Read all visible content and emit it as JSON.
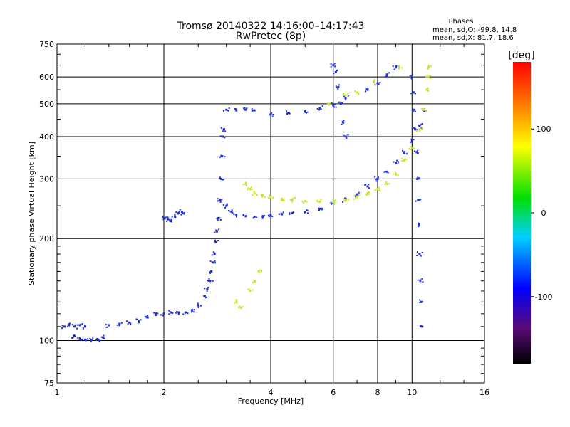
{
  "chart_data": {
    "type": "scatter",
    "title": "Tromsø 20140322 14:16:00–14:17:43",
    "subtitle": "RwPretec (8p)",
    "xlabel": "Frequency [MHz]",
    "ylabel": "Stationary phase Virtual Height [km]",
    "x_scale": "log",
    "y_scale": "log",
    "xlim": [
      1,
      16
    ],
    "ylim": [
      75,
      750
    ],
    "x_ticks": [
      1,
      2,
      4,
      6,
      8,
      10,
      16
    ],
    "y_ticks": [
      75,
      100,
      200,
      300,
      400,
      500,
      600,
      750
    ],
    "grid": true,
    "legend": {
      "title": "Phases",
      "entries": [
        "mean, sd,O: -99.8, 14.8",
        "mean, sd,X: 81.7, 18.6"
      ]
    },
    "colorbar": {
      "label": "[deg]",
      "range": [
        -180,
        180
      ],
      "ticks": [
        100,
        0,
        -100
      ],
      "colormap": "rainbow"
    },
    "series": [
      {
        "mode": "O",
        "phase_deg": -100,
        "color": "#1e2fd6",
        "points": [
          [
            1.05,
            110
          ],
          [
            1.08,
            111
          ],
          [
            1.12,
            110
          ],
          [
            1.16,
            111
          ],
          [
            1.2,
            110
          ],
          [
            1.12,
            103
          ],
          [
            1.16,
            101
          ],
          [
            1.2,
            100.5
          ],
          [
            1.25,
            100.5
          ],
          [
            1.3,
            101
          ],
          [
            1.35,
            102
          ],
          [
            1.4,
            111
          ],
          [
            1.5,
            112
          ],
          [
            1.6,
            113
          ],
          [
            1.7,
            114
          ],
          [
            1.8,
            117
          ],
          [
            1.9,
            119
          ],
          [
            2.0,
            120
          ],
          [
            2.1,
            121
          ],
          [
            2.2,
            121
          ],
          [
            2.3,
            121
          ],
          [
            2.4,
            123
          ],
          [
            2.5,
            127
          ],
          [
            2.6,
            135
          ],
          [
            2.65,
            142
          ],
          [
            2.7,
            150
          ],
          [
            2.72,
            160
          ],
          [
            2.75,
            170
          ],
          [
            2.78,
            180
          ],
          [
            2.8,
            195
          ],
          [
            2.82,
            210
          ],
          [
            2.85,
            230
          ],
          [
            2.88,
            260
          ],
          [
            2.9,
            300
          ],
          [
            2.92,
            350
          ],
          [
            2.93,
            400
          ],
          [
            2.95,
            420
          ],
          [
            2.0,
            230
          ],
          [
            2.05,
            228
          ],
          [
            2.1,
            225
          ],
          [
            2.15,
            232
          ],
          [
            2.2,
            238
          ],
          [
            2.25,
            240
          ],
          [
            3.0,
            250
          ],
          [
            3.1,
            240
          ],
          [
            3.2,
            235
          ],
          [
            3.4,
            233
          ],
          [
            3.6,
            232
          ],
          [
            3.8,
            232
          ],
          [
            4.0,
            234
          ],
          [
            4.3,
            236
          ],
          [
            4.6,
            238
          ],
          [
            5.0,
            240
          ],
          [
            5.5,
            245
          ],
          [
            6.0,
            255
          ],
          [
            6.5,
            260
          ],
          [
            7.0,
            270
          ],
          [
            7.5,
            285
          ],
          [
            8.0,
            300
          ],
          [
            8.5,
            315
          ],
          [
            9.0,
            335
          ],
          [
            9.5,
            360
          ],
          [
            10.0,
            390
          ],
          [
            10.5,
            430
          ],
          [
            10.8,
            480
          ],
          [
            3.0,
            480
          ],
          [
            3.2,
            478
          ],
          [
            3.4,
            480
          ],
          [
            3.6,
            478
          ],
          [
            4.0,
            465
          ],
          [
            4.5,
            470
          ],
          [
            5.0,
            475
          ],
          [
            5.5,
            485
          ],
          [
            6.0,
            495
          ],
          [
            6.0,
            650
          ],
          [
            6.1,
            620
          ],
          [
            6.2,
            560
          ],
          [
            6.3,
            500
          ],
          [
            6.4,
            440
          ],
          [
            6.5,
            400
          ],
          [
            10.0,
            600
          ],
          [
            10.1,
            540
          ],
          [
            10.15,
            480
          ],
          [
            10.2,
            420
          ],
          [
            10.3,
            360
          ],
          [
            10.35,
            300
          ],
          [
            10.4,
            260
          ],
          [
            10.45,
            220
          ],
          [
            10.5,
            180
          ],
          [
            10.55,
            150
          ],
          [
            10.6,
            130
          ],
          [
            10.65,
            110
          ],
          [
            9.0,
            640
          ],
          [
            8.5,
            610
          ],
          [
            8.0,
            575
          ],
          [
            7.5,
            550
          ],
          [
            6.5,
            520
          ]
        ]
      },
      {
        "mode": "X",
        "phase_deg": 80,
        "color": "#c8e628",
        "points": [
          [
            3.4,
            290
          ],
          [
            3.5,
            280
          ],
          [
            3.6,
            272
          ],
          [
            3.8,
            268
          ],
          [
            4.0,
            265
          ],
          [
            4.3,
            262
          ],
          [
            4.6,
            260
          ],
          [
            5.0,
            258
          ],
          [
            5.5,
            257
          ],
          [
            6.0,
            256
          ],
          [
            6.5,
            260
          ],
          [
            7.0,
            265
          ],
          [
            7.5,
            272
          ],
          [
            8.0,
            280
          ],
          [
            8.5,
            290
          ],
          [
            9.0,
            310
          ],
          [
            9.5,
            340
          ],
          [
            10.0,
            370
          ],
          [
            10.5,
            420
          ],
          [
            10.8,
            480
          ],
          [
            11.0,
            550
          ],
          [
            11.1,
            600
          ],
          [
            11.15,
            640
          ],
          [
            3.2,
            130
          ],
          [
            3.3,
            125
          ],
          [
            3.5,
            140
          ],
          [
            3.6,
            150
          ],
          [
            3.7,
            160
          ],
          [
            5.8,
            500
          ],
          [
            6.5,
            530
          ],
          [
            7.0,
            540
          ],
          [
            7.8,
            580
          ],
          [
            9.2,
            640
          ]
        ]
      }
    ]
  }
}
